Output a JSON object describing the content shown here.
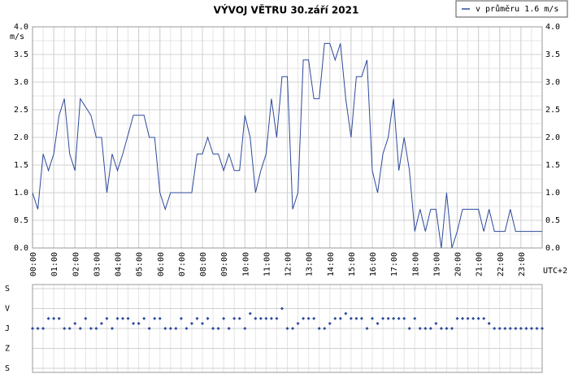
{
  "chart_data": [
    {
      "type": "line",
      "title": "VÝVOJ VĚTRU  30.září 2021",
      "ylabel": "m/s",
      "xlabel": "UTC+2",
      "legend": "top-right",
      "grid": true,
      "x": [
        0,
        0.25,
        0.5,
        0.75,
        1,
        1.25,
        1.5,
        1.75,
        2,
        2.25,
        2.5,
        2.75,
        3,
        3.25,
        3.5,
        3.75,
        4,
        4.25,
        4.5,
        4.75,
        5,
        5.25,
        5.5,
        5.75,
        6,
        6.25,
        6.5,
        6.75,
        7,
        7.25,
        7.5,
        7.75,
        8,
        8.25,
        8.5,
        8.75,
        9,
        9.25,
        9.5,
        9.75,
        10,
        10.25,
        10.5,
        10.75,
        11,
        11.25,
        11.5,
        11.75,
        12,
        12.25,
        12.5,
        12.75,
        13,
        13.25,
        13.5,
        13.75,
        14,
        14.25,
        14.5,
        14.75,
        15,
        15.25,
        15.5,
        15.75,
        16,
        16.25,
        16.5,
        16.75,
        17,
        17.25,
        17.5,
        17.75,
        18,
        18.25,
        18.5,
        18.75,
        19,
        19.25,
        19.5,
        19.75,
        20,
        20.25,
        20.5,
        20.75,
        21,
        21.25,
        21.5,
        21.75,
        22,
        22.25,
        22.5,
        22.75,
        23,
        23.25,
        23.5,
        23.75,
        24
      ],
      "series": [
        {
          "name": "v průměru 1.6 m/s",
          "color": "#2c4a9c",
          "values": [
            1.0,
            0.7,
            1.7,
            1.4,
            1.7,
            2.4,
            2.7,
            1.7,
            1.4,
            2.7,
            2.55,
            2.4,
            2.0,
            2.0,
            1.0,
            1.7,
            1.4,
            1.7,
            2.05,
            2.4,
            2.4,
            2.4,
            2.0,
            2.0,
            1.0,
            0.7,
            1.0,
            1.0,
            1.0,
            1.0,
            1.0,
            1.7,
            1.7,
            2.0,
            1.7,
            1.7,
            1.4,
            1.7,
            1.4,
            1.4,
            2.4,
            2.0,
            1.0,
            1.4,
            1.7,
            2.7,
            2.0,
            3.1,
            3.1,
            0.7,
            1.0,
            3.4,
            3.4,
            2.7,
            2.7,
            3.7,
            3.7,
            3.4,
            3.7,
            2.7,
            2.0,
            3.1,
            3.1,
            3.4,
            1.4,
            1.0,
            1.7,
            2.0,
            2.7,
            1.4,
            2.0,
            1.4,
            0.3,
            0.7,
            0.3,
            0.7,
            0.7,
            0.0,
            1.0,
            0.0,
            0.3,
            0.7,
            0.7,
            0.7,
            0.7,
            0.3,
            0.7,
            0.3,
            0.3,
            0.3,
            0.7,
            0.3,
            0.3,
            0.3,
            0.3,
            0.3,
            0.3
          ]
        }
      ],
      "xlim": [
        0,
        24
      ],
      "xticks": [
        {
          "value": 0,
          "label": "00:00"
        },
        {
          "value": 1,
          "label": "01:00"
        },
        {
          "value": 2,
          "label": "02:00"
        },
        {
          "value": 3,
          "label": "03:00"
        },
        {
          "value": 4,
          "label": "04:00"
        },
        {
          "value": 5,
          "label": "05:00"
        },
        {
          "value": 6,
          "label": "06:00"
        },
        {
          "value": 7,
          "label": "07:00"
        },
        {
          "value": 8,
          "label": "08:00"
        },
        {
          "value": 9,
          "label": "09:00"
        },
        {
          "value": 10,
          "label": "10:00"
        },
        {
          "value": 11,
          "label": "11:00"
        },
        {
          "value": 12,
          "label": "12:00"
        },
        {
          "value": 13,
          "label": "13:00"
        },
        {
          "value": 14,
          "label": "14:00"
        },
        {
          "value": 15,
          "label": "15:00"
        },
        {
          "value": 16,
          "label": "16:00"
        },
        {
          "value": 17,
          "label": "17:00"
        },
        {
          "value": 18,
          "label": "18:00"
        },
        {
          "value": 19,
          "label": "19:00"
        },
        {
          "value": 20,
          "label": "20:00"
        },
        {
          "value": 21,
          "label": "21:00"
        },
        {
          "value": 22,
          "label": "22:00"
        },
        {
          "value": 23,
          "label": "23:00"
        }
      ],
      "ylim": [
        0,
        4
      ],
      "yticks": [
        {
          "value": 0,
          "label": "0.0"
        },
        0.5,
        {
          "value": 1,
          "label": "1.0"
        },
        1.5,
        {
          "value": 2,
          "label": "2.0"
        },
        2.5,
        {
          "value": 3,
          "label": "3.0"
        },
        3.5,
        {
          "value": 4,
          "label": "4.0"
        }
      ]
    },
    {
      "type": "scatter",
      "grid": true,
      "x": [
        0,
        0.25,
        0.5,
        0.75,
        1,
        1.25,
        1.5,
        1.75,
        2,
        2.25,
        2.5,
        2.75,
        3,
        3.25,
        3.5,
        3.75,
        4,
        4.25,
        4.5,
        4.75,
        5,
        5.25,
        5.5,
        5.75,
        6,
        6.25,
        6.5,
        6.75,
        7,
        7.25,
        7.5,
        7.75,
        8,
        8.25,
        8.5,
        8.75,
        9,
        9.25,
        9.5,
        9.75,
        10,
        10.25,
        10.5,
        10.75,
        11,
        11.25,
        11.5,
        11.75,
        12,
        12.25,
        12.5,
        12.75,
        13,
        13.25,
        13.5,
        13.75,
        14,
        14.25,
        14.5,
        14.75,
        15,
        15.25,
        15.5,
        15.75,
        16,
        16.25,
        16.5,
        16.75,
        17,
        17.25,
        17.5,
        17.75,
        18,
        18.25,
        18.5,
        18.75,
        19,
        19.25,
        19.5,
        19.75,
        20,
        20.25,
        20.5,
        20.75,
        21,
        21.25,
        21.5,
        21.75,
        22,
        22.25,
        22.5,
        22.75,
        23,
        23.25,
        23.5,
        23.75,
        24
      ],
      "color": "#2c4a9c",
      "values": [
        180,
        180,
        180,
        135,
        135,
        135,
        180,
        180,
        157.5,
        180,
        135,
        180,
        180,
        157.5,
        135,
        180,
        135,
        135,
        135,
        157.5,
        157.5,
        135,
        180,
        135,
        135,
        180,
        180,
        180,
        135,
        180,
        157.5,
        135,
        157.5,
        135,
        180,
        180,
        135,
        180,
        135,
        135,
        180,
        112.5,
        135,
        135,
        135,
        135,
        135,
        90,
        180,
        180,
        157.5,
        135,
        135,
        135,
        180,
        180,
        157.5,
        135,
        135,
        112.5,
        135,
        135,
        135,
        180,
        135,
        157.5,
        135,
        135,
        135,
        135,
        135,
        180,
        135,
        180,
        180,
        180,
        157.5,
        180,
        180,
        180,
        135,
        135,
        135,
        135,
        135,
        135,
        157.5,
        180,
        180,
        180,
        180,
        180,
        180,
        180,
        180,
        180,
        180
      ],
      "xlim": [
        0,
        24
      ],
      "ylim": [
        0,
        360
      ],
      "yticks": [
        {
          "value": 0,
          "label": "S"
        },
        {
          "value": 90,
          "label": "V"
        },
        {
          "value": 180,
          "label": "J"
        },
        {
          "value": 270,
          "label": "Z"
        },
        {
          "value": 360,
          "label": "S"
        }
      ]
    }
  ]
}
